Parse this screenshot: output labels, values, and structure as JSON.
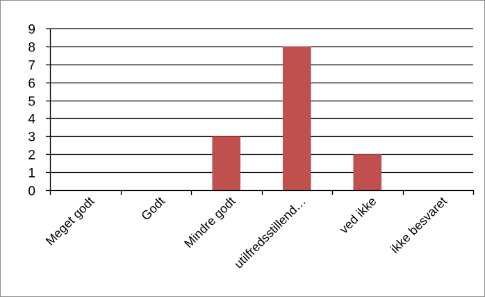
{
  "chart_data": {
    "type": "bar",
    "categories": [
      "Meget godt",
      "Godt",
      "Mindre godt",
      "utilfredsstillend…",
      "ved ikke",
      "ikke besvaret"
    ],
    "values": [
      0,
      0,
      3,
      8,
      2,
      0
    ],
    "title": "",
    "xlabel": "",
    "ylabel": "",
    "ylim": [
      0,
      9
    ],
    "yticks": [
      0,
      1,
      2,
      3,
      4,
      5,
      6,
      7,
      8,
      9
    ],
    "grid": true,
    "legend": "none",
    "bar_color": "#c0504d"
  }
}
